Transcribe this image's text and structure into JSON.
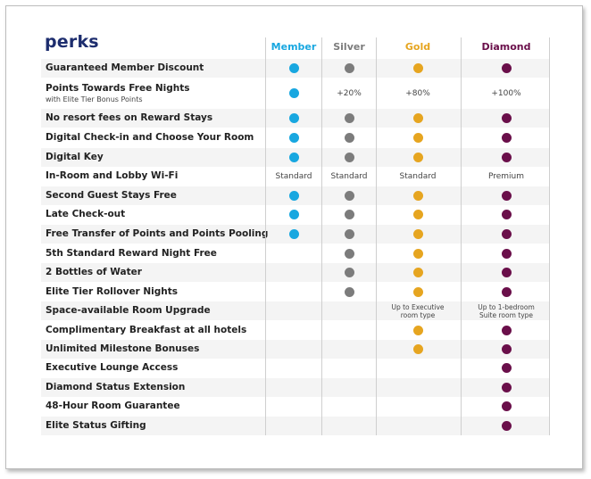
{
  "title": "perks",
  "tiers": [
    {
      "name": "Member",
      "color": "#18a7e0"
    },
    {
      "name": "Silver",
      "color": "#7c7c7c"
    },
    {
      "name": "Gold",
      "color": "#e6a520"
    },
    {
      "name": "Diamond",
      "color": "#6a0f4a"
    }
  ],
  "rows": [
    {
      "label": "Guaranteed Member Discount",
      "cells": [
        "dot",
        "dot",
        "dot",
        "dot"
      ]
    },
    {
      "label": "Points Towards Free Nights",
      "sublabel": "with Elite Tier Bonus Points",
      "cells": [
        "dot",
        "+20%",
        "+80%",
        "+100%"
      ]
    },
    {
      "label": "No resort fees on Reward Stays",
      "cells": [
        "dot",
        "dot",
        "dot",
        "dot"
      ]
    },
    {
      "label": "Digital Check-in and Choose Your Room",
      "cells": [
        "dot",
        "dot",
        "dot",
        "dot"
      ]
    },
    {
      "label": "Digital Key",
      "cells": [
        "dot",
        "dot",
        "dot",
        "dot"
      ]
    },
    {
      "label": "In-Room and Lobby Wi-Fi",
      "cells": [
        "Standard",
        "Standard",
        "Standard",
        "Premium"
      ]
    },
    {
      "label": "Second Guest Stays Free",
      "cells": [
        "dot",
        "dot",
        "dot",
        "dot"
      ]
    },
    {
      "label": "Late Check-out",
      "cells": [
        "dot",
        "dot",
        "dot",
        "dot"
      ]
    },
    {
      "label": "Free Transfer of Points and Points Pooling",
      "cells": [
        "dot",
        "dot",
        "dot",
        "dot"
      ]
    },
    {
      "label": "5th Standard Reward Night Free",
      "cells": [
        "",
        "dot",
        "dot",
        "dot"
      ]
    },
    {
      "label": "2 Bottles of Water",
      "cells": [
        "",
        "dot",
        "dot",
        "dot"
      ]
    },
    {
      "label": "Elite Tier Rollover Nights",
      "cells": [
        "",
        "dot",
        "dot",
        "dot"
      ]
    },
    {
      "label": "Space-available Room Upgrade",
      "cells": [
        "",
        "",
        "Up to Executive\nroom type",
        "Up to 1-bedroom\nSuite room type"
      ]
    },
    {
      "label": "Complimentary Breakfast at all hotels",
      "cells": [
        "",
        "",
        "dot",
        "dot"
      ]
    },
    {
      "label": "Unlimited Milestone Bonuses",
      "cells": [
        "",
        "",
        "dot",
        "dot"
      ]
    },
    {
      "label": "Executive Lounge Access",
      "cells": [
        "",
        "",
        "",
        "dot"
      ]
    },
    {
      "label": "Diamond Status Extension",
      "cells": [
        "",
        "",
        "",
        "dot"
      ]
    },
    {
      "label": "48-Hour Room Guarantee",
      "cells": [
        "",
        "",
        "",
        "dot"
      ]
    },
    {
      "label": "Elite Status Gifting",
      "cells": [
        "",
        "",
        "",
        "dot"
      ]
    }
  ]
}
